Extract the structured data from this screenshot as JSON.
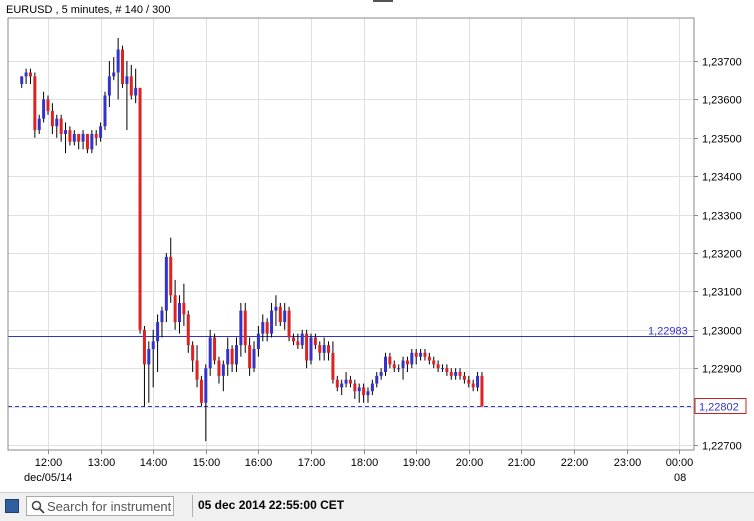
{
  "header": {
    "label": "EURUSD , 5 minutes, # 140 / 300"
  },
  "chart_data": {
    "type": "candlestick",
    "symbol": "EURUSD",
    "timeframe": "5 minutes",
    "date_label": "dec/05/14",
    "next_date_label": "08",
    "x_tick_labels": [
      "12:00",
      "13:00",
      "14:00",
      "15:00",
      "16:00",
      "17:00",
      "18:00",
      "19:00",
      "20:00",
      "21:00",
      "22:00",
      "23:00",
      "00:00"
    ],
    "y_tick_labels": [
      "1,22700",
      "1,22800",
      "1,22900",
      "1,23000",
      "1,23100",
      "1,23200",
      "1,23300",
      "1,23400",
      "1,23500",
      "1,23600",
      "1,23700"
    ],
    "ylim": [
      1.2267,
      1.2378
    ],
    "hline_solid": {
      "value": 1.22983,
      "label": "1,22983",
      "color": "#3333cc"
    },
    "hline_dashed": {
      "value": 1.22802,
      "label": "1,22802",
      "color": "#3333cc",
      "label_border": "#cc2222"
    },
    "bull_color": "#3333cc",
    "bear_color": "#dd2222",
    "grid": true,
    "start_time": "11:30",
    "interval_minutes": 5,
    "candles": [
      [
        1.2364,
        1.2366,
        1.2363,
        1.2366
      ],
      [
        1.2366,
        1.2368,
        1.2364,
        1.2367
      ],
      [
        1.2367,
        1.2368,
        1.2364,
        1.2366
      ],
      [
        1.2366,
        1.2367,
        1.235,
        1.2352
      ],
      [
        1.2352,
        1.2356,
        1.2351,
        1.2355
      ],
      [
        1.2355,
        1.2362,
        1.2354,
        1.236
      ],
      [
        1.236,
        1.2361,
        1.2356,
        1.2357
      ],
      [
        1.2357,
        1.2359,
        1.2351,
        1.2353
      ],
      [
        1.2353,
        1.2356,
        1.235,
        1.2355
      ],
      [
        1.2355,
        1.2356,
        1.2349,
        1.2351
      ],
      [
        1.2351,
        1.2354,
        1.2346,
        1.2352
      ],
      [
        1.2352,
        1.2353,
        1.2348,
        1.2349
      ],
      [
        1.2349,
        1.2352,
        1.2348,
        1.2351
      ],
      [
        1.2351,
        1.2351,
        1.2347,
        1.2349
      ],
      [
        1.2349,
        1.2352,
        1.2347,
        1.2351
      ],
      [
        1.2351,
        1.2351,
        1.2346,
        1.2347
      ],
      [
        1.2347,
        1.2352,
        1.2346,
        1.2351
      ],
      [
        1.2351,
        1.2352,
        1.2348,
        1.235
      ],
      [
        1.235,
        1.2354,
        1.2349,
        1.2353
      ],
      [
        1.2353,
        1.2362,
        1.2352,
        1.2361
      ],
      [
        1.2361,
        1.237,
        1.2358,
        1.2366
      ],
      [
        1.2366,
        1.2371,
        1.2365,
        1.2367
      ],
      [
        1.2367,
        1.2376,
        1.236,
        1.2373
      ],
      [
        1.2373,
        1.2374,
        1.2363,
        1.2364
      ],
      [
        1.2364,
        1.237,
        1.2352,
        1.2366
      ],
      [
        1.2366,
        1.2369,
        1.236,
        1.2361
      ],
      [
        1.2361,
        1.2368,
        1.2359,
        1.2363
      ],
      [
        1.2363,
        1.2363,
        1.2299,
        1.23
      ],
      [
        1.23,
        1.2301,
        1.228,
        1.2291
      ],
      [
        1.2291,
        1.2297,
        1.2281,
        1.2295
      ],
      [
        1.2295,
        1.23,
        1.2285,
        1.2297
      ],
      [
        1.2297,
        1.2304,
        1.2289,
        1.2302
      ],
      [
        1.2302,
        1.2306,
        1.2298,
        1.2305
      ],
      [
        1.2305,
        1.232,
        1.2302,
        1.2319
      ],
      [
        1.2319,
        1.2324,
        1.2307,
        1.2309
      ],
      [
        1.2309,
        1.2313,
        1.23,
        1.2302
      ],
      [
        1.2302,
        1.2309,
        1.2299,
        1.2307
      ],
      [
        1.2307,
        1.2312,
        1.2301,
        1.2304
      ],
      [
        1.2304,
        1.2305,
        1.2294,
        1.2296
      ],
      [
        1.2296,
        1.2297,
        1.2289,
        1.2292
      ],
      [
        1.2292,
        1.2296,
        1.2285,
        1.2287
      ],
      [
        1.2287,
        1.2288,
        1.228,
        1.2281
      ],
      [
        1.2281,
        1.2291,
        1.2271,
        1.229
      ],
      [
        1.229,
        1.23,
        1.2288,
        1.2298
      ],
      [
        1.2298,
        1.2299,
        1.2291,
        1.2292
      ],
      [
        1.2292,
        1.2293,
        1.2286,
        1.2288
      ],
      [
        1.2288,
        1.2292,
        1.2284,
        1.2291
      ],
      [
        1.2291,
        1.2298,
        1.2288,
        1.2295
      ],
      [
        1.2295,
        1.2296,
        1.2289,
        1.2291
      ],
      [
        1.2291,
        1.2298,
        1.2289,
        1.2296
      ],
      [
        1.2296,
        1.2307,
        1.2293,
        1.2305
      ],
      [
        1.2305,
        1.2307,
        1.2294,
        1.2296
      ],
      [
        1.2296,
        1.2298,
        1.2288,
        1.229
      ],
      [
        1.229,
        1.2297,
        1.2289,
        1.2295
      ],
      [
        1.2295,
        1.2301,
        1.2293,
        1.2299
      ],
      [
        1.2299,
        1.2304,
        1.2297,
        1.2302
      ],
      [
        1.2302,
        1.2303,
        1.2297,
        1.2299
      ],
      [
        1.2299,
        1.2307,
        1.2298,
        1.2305
      ],
      [
        1.2305,
        1.2309,
        1.2301,
        1.2306
      ],
      [
        1.2306,
        1.2307,
        1.2301,
        1.2302
      ],
      [
        1.2302,
        1.2307,
        1.23,
        1.2305
      ],
      [
        1.2305,
        1.2306,
        1.2297,
        1.2298
      ],
      [
        1.2298,
        1.2299,
        1.2296,
        1.2297
      ],
      [
        1.2297,
        1.2299,
        1.2295,
        1.2296
      ],
      [
        1.2296,
        1.23,
        1.2295,
        1.2299
      ],
      [
        1.2299,
        1.23,
        1.229,
        1.2292
      ],
      [
        1.2292,
        1.2299,
        1.2291,
        1.2298
      ],
      [
        1.2298,
        1.2299,
        1.2295,
        1.2296
      ],
      [
        1.2296,
        1.2297,
        1.2292,
        1.2294
      ],
      [
        1.2294,
        1.2298,
        1.2292,
        1.2296
      ],
      [
        1.2296,
        1.2297,
        1.2292,
        1.2294
      ],
      [
        1.2294,
        1.2297,
        1.2286,
        1.2287
      ],
      [
        1.2287,
        1.2288,
        1.2284,
        1.2285
      ],
      [
        1.2285,
        1.2287,
        1.2283,
        1.2286
      ],
      [
        1.2286,
        1.2289,
        1.2285,
        1.2287
      ],
      [
        1.2287,
        1.2288,
        1.2285,
        1.2286
      ],
      [
        1.2286,
        1.2287,
        1.2282,
        1.2284
      ],
      [
        1.2284,
        1.2286,
        1.2281,
        1.2285
      ],
      [
        1.2285,
        1.2286,
        1.2281,
        1.2283
      ],
      [
        1.2283,
        1.2285,
        1.2281,
        1.2284
      ],
      [
        1.2284,
        1.2287,
        1.2283,
        1.2286
      ],
      [
        1.2286,
        1.2289,
        1.2285,
        1.2288
      ],
      [
        1.2288,
        1.229,
        1.2287,
        1.2289
      ],
      [
        1.2289,
        1.2294,
        1.2288,
        1.2293
      ],
      [
        1.2293,
        1.2294,
        1.229,
        1.2291
      ],
      [
        1.2291,
        1.2292,
        1.2289,
        1.229
      ],
      [
        1.229,
        1.2291,
        1.2289,
        1.229
      ],
      [
        1.229,
        1.2293,
        1.2287,
        1.2292
      ],
      [
        1.2292,
        1.2293,
        1.2289,
        1.2291
      ],
      [
        1.2291,
        1.2295,
        1.229,
        1.2294
      ],
      [
        1.2294,
        1.2295,
        1.2291,
        1.2293
      ],
      [
        1.2293,
        1.2295,
        1.2292,
        1.2294
      ],
      [
        1.2294,
        1.2295,
        1.2292,
        1.2293
      ],
      [
        1.2293,
        1.2294,
        1.2291,
        1.2292
      ],
      [
        1.2292,
        1.2293,
        1.229,
        1.2291
      ],
      [
        1.2291,
        1.2292,
        1.2289,
        1.229
      ],
      [
        1.229,
        1.2291,
        1.2289,
        1.229
      ],
      [
        1.229,
        1.2291,
        1.2288,
        1.2289
      ],
      [
        1.2289,
        1.229,
        1.2287,
        1.2288
      ],
      [
        1.2288,
        1.229,
        1.2287,
        1.2289
      ],
      [
        1.2289,
        1.229,
        1.2287,
        1.2288
      ],
      [
        1.2288,
        1.2289,
        1.2286,
        1.2287
      ],
      [
        1.2287,
        1.2288,
        1.2285,
        1.2286
      ],
      [
        1.2286,
        1.2287,
        1.2284,
        1.2285
      ],
      [
        1.2285,
        1.2289,
        1.2284,
        1.2288
      ],
      [
        1.2288,
        1.2289,
        1.228,
        1.228
      ]
    ]
  },
  "footer": {
    "search_placeholder": "Search for instrument",
    "datetime": "05 dec 2014 22:55:00 CET"
  }
}
